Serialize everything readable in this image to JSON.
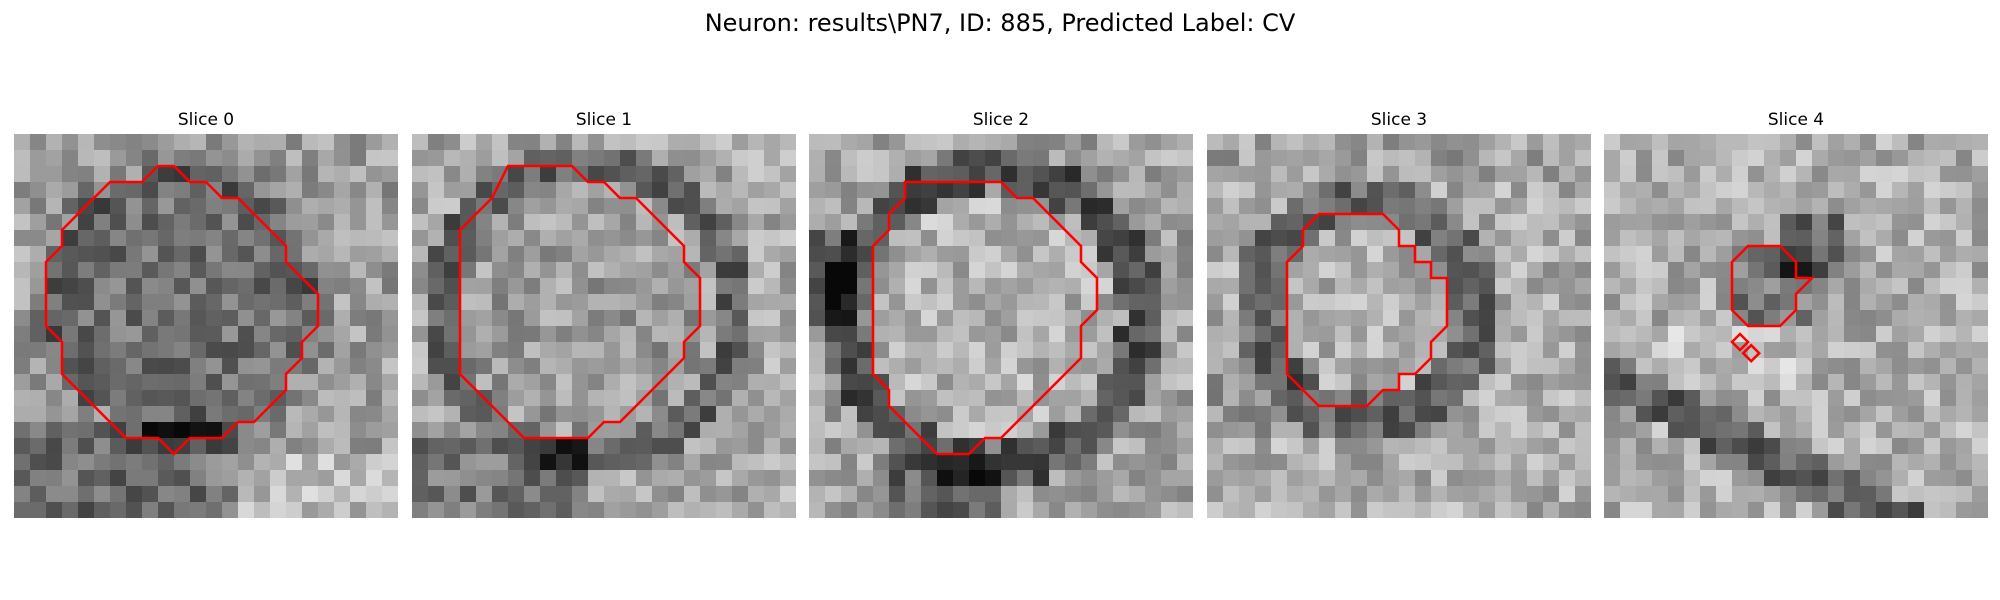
{
  "figure": {
    "title": "Neuron: results\\PN7, ID: 885, Predicted Label: CV"
  },
  "panels": [
    {
      "title": "Slice 0",
      "image": "grayscale EM patch, slightly darker blob on left-center with dark band at bottom",
      "contour_color": "#ff0000",
      "contour": [
        [
          9,
          2
        ],
        [
          10,
          2
        ],
        [
          11,
          3
        ],
        [
          12,
          3
        ],
        [
          13,
          4
        ],
        [
          14,
          4
        ],
        [
          15,
          5
        ],
        [
          16,
          6
        ],
        [
          17,
          7
        ],
        [
          17,
          8
        ],
        [
          18,
          9
        ],
        [
          19,
          10
        ],
        [
          19,
          11
        ],
        [
          19,
          12
        ],
        [
          18,
          13
        ],
        [
          18,
          14
        ],
        [
          17,
          15
        ],
        [
          17,
          16
        ],
        [
          16,
          17
        ],
        [
          15,
          18
        ],
        [
          14,
          18
        ],
        [
          13,
          19
        ],
        [
          12,
          19
        ],
        [
          11,
          19
        ],
        [
          10,
          20
        ],
        [
          9,
          19
        ],
        [
          8,
          19
        ],
        [
          7,
          19
        ],
        [
          6,
          18
        ],
        [
          5,
          17
        ],
        [
          4,
          16
        ],
        [
          3,
          15
        ],
        [
          3,
          14
        ],
        [
          3,
          13
        ],
        [
          2,
          12
        ],
        [
          2,
          11
        ],
        [
          2,
          10
        ],
        [
          2,
          9
        ],
        [
          2,
          8
        ],
        [
          3,
          7
        ],
        [
          3,
          6
        ],
        [
          4,
          5
        ],
        [
          5,
          4
        ],
        [
          6,
          3
        ],
        [
          7,
          3
        ],
        [
          8,
          3
        ]
      ],
      "extra_marks": []
    },
    {
      "title": "Slice 1",
      "image": "grayscale EM patch, large roughly circular darker ring",
      "contour_color": "#ff0000",
      "contour": [
        [
          6,
          2
        ],
        [
          7,
          2
        ],
        [
          8,
          2
        ],
        [
          9,
          2
        ],
        [
          10,
          2
        ],
        [
          11,
          3
        ],
        [
          12,
          3
        ],
        [
          13,
          4
        ],
        [
          14,
          4
        ],
        [
          15,
          5
        ],
        [
          16,
          6
        ],
        [
          17,
          7
        ],
        [
          17,
          8
        ],
        [
          18,
          9
        ],
        [
          18,
          10
        ],
        [
          18,
          11
        ],
        [
          18,
          12
        ],
        [
          17,
          13
        ],
        [
          17,
          14
        ],
        [
          16,
          15
        ],
        [
          15,
          16
        ],
        [
          14,
          17
        ],
        [
          13,
          18
        ],
        [
          12,
          18
        ],
        [
          11,
          19
        ],
        [
          10,
          19
        ],
        [
          9,
          19
        ],
        [
          8,
          19
        ],
        [
          7,
          19
        ],
        [
          6,
          18
        ],
        [
          5,
          17
        ],
        [
          4,
          16
        ],
        [
          3,
          15
        ],
        [
          3,
          14
        ],
        [
          3,
          13
        ],
        [
          3,
          12
        ],
        [
          3,
          11
        ],
        [
          3,
          10
        ],
        [
          3,
          9
        ],
        [
          3,
          8
        ],
        [
          3,
          7
        ],
        [
          3,
          6
        ],
        [
          4,
          5
        ],
        [
          5,
          4
        ]
      ],
      "extra_marks": []
    },
    {
      "title": "Slice 2",
      "image": "grayscale EM patch, bright circular region surrounded by dark ring",
      "contour_color": "#ff0000",
      "contour": [
        [
          6,
          3
        ],
        [
          7,
          3
        ],
        [
          8,
          3
        ],
        [
          9,
          3
        ],
        [
          10,
          3
        ],
        [
          11,
          3
        ],
        [
          12,
          3
        ],
        [
          13,
          4
        ],
        [
          14,
          4
        ],
        [
          15,
          5
        ],
        [
          16,
          6
        ],
        [
          17,
          7
        ],
        [
          17,
          8
        ],
        [
          18,
          9
        ],
        [
          18,
          10
        ],
        [
          18,
          11
        ],
        [
          17,
          12
        ],
        [
          17,
          13
        ],
        [
          17,
          14
        ],
        [
          16,
          15
        ],
        [
          15,
          16
        ],
        [
          14,
          17
        ],
        [
          13,
          18
        ],
        [
          12,
          19
        ],
        [
          11,
          19
        ],
        [
          10,
          20
        ],
        [
          9,
          20
        ],
        [
          8,
          20
        ],
        [
          7,
          19
        ],
        [
          6,
          18
        ],
        [
          5,
          17
        ],
        [
          5,
          16
        ],
        [
          4,
          15
        ],
        [
          4,
          14
        ],
        [
          4,
          13
        ],
        [
          4,
          12
        ],
        [
          4,
          11
        ],
        [
          4,
          10
        ],
        [
          4,
          9
        ],
        [
          4,
          8
        ],
        [
          4,
          7
        ],
        [
          5,
          6
        ],
        [
          5,
          5
        ],
        [
          6,
          4
        ]
      ],
      "extra_marks": []
    },
    {
      "title": "Slice 3",
      "image": "grayscale EM patch, smaller circular region with dark boundary",
      "contour_color": "#ff0000",
      "contour": [
        [
          7,
          5
        ],
        [
          8,
          5
        ],
        [
          9,
          5
        ],
        [
          10,
          5
        ],
        [
          11,
          5
        ],
        [
          12,
          6
        ],
        [
          12,
          7
        ],
        [
          13,
          7
        ],
        [
          13,
          8
        ],
        [
          14,
          8
        ],
        [
          14,
          9
        ],
        [
          15,
          9
        ],
        [
          15,
          10
        ],
        [
          15,
          11
        ],
        [
          15,
          12
        ],
        [
          14,
          13
        ],
        [
          14,
          14
        ],
        [
          13,
          15
        ],
        [
          12,
          15
        ],
        [
          12,
          16
        ],
        [
          11,
          16
        ],
        [
          10,
          17
        ],
        [
          9,
          17
        ],
        [
          8,
          17
        ],
        [
          7,
          17
        ],
        [
          6,
          16
        ],
        [
          5,
          15
        ],
        [
          5,
          14
        ],
        [
          5,
          13
        ],
        [
          5,
          12
        ],
        [
          5,
          11
        ],
        [
          5,
          10
        ],
        [
          5,
          9
        ],
        [
          5,
          8
        ],
        [
          6,
          7
        ],
        [
          6,
          6
        ]
      ],
      "extra_marks": []
    },
    {
      "title": "Slice 4",
      "image": "grayscale EM patch, small dark vesicle with diagonal dark band below",
      "contour_color": "#ff0000",
      "contour": [
        [
          9,
          7
        ],
        [
          10,
          7
        ],
        [
          11,
          7
        ],
        [
          12,
          8
        ],
        [
          12,
          9
        ],
        [
          13,
          9
        ],
        [
          12,
          10
        ],
        [
          12,
          11
        ],
        [
          11,
          12
        ],
        [
          10,
          12
        ],
        [
          9,
          12
        ],
        [
          8,
          11
        ],
        [
          8,
          10
        ],
        [
          8,
          9
        ],
        [
          8,
          8
        ]
      ],
      "extra_marks": [
        [
          [
            8,
            13
          ],
          [
            8.5,
            12.5
          ],
          [
            9,
            13
          ],
          [
            8.5,
            13.5
          ]
        ],
        [
          [
            8.7,
            13.7
          ],
          [
            9.2,
            13.2
          ],
          [
            9.7,
            13.7
          ],
          [
            9.2,
            14.2
          ]
        ]
      ]
    }
  ]
}
